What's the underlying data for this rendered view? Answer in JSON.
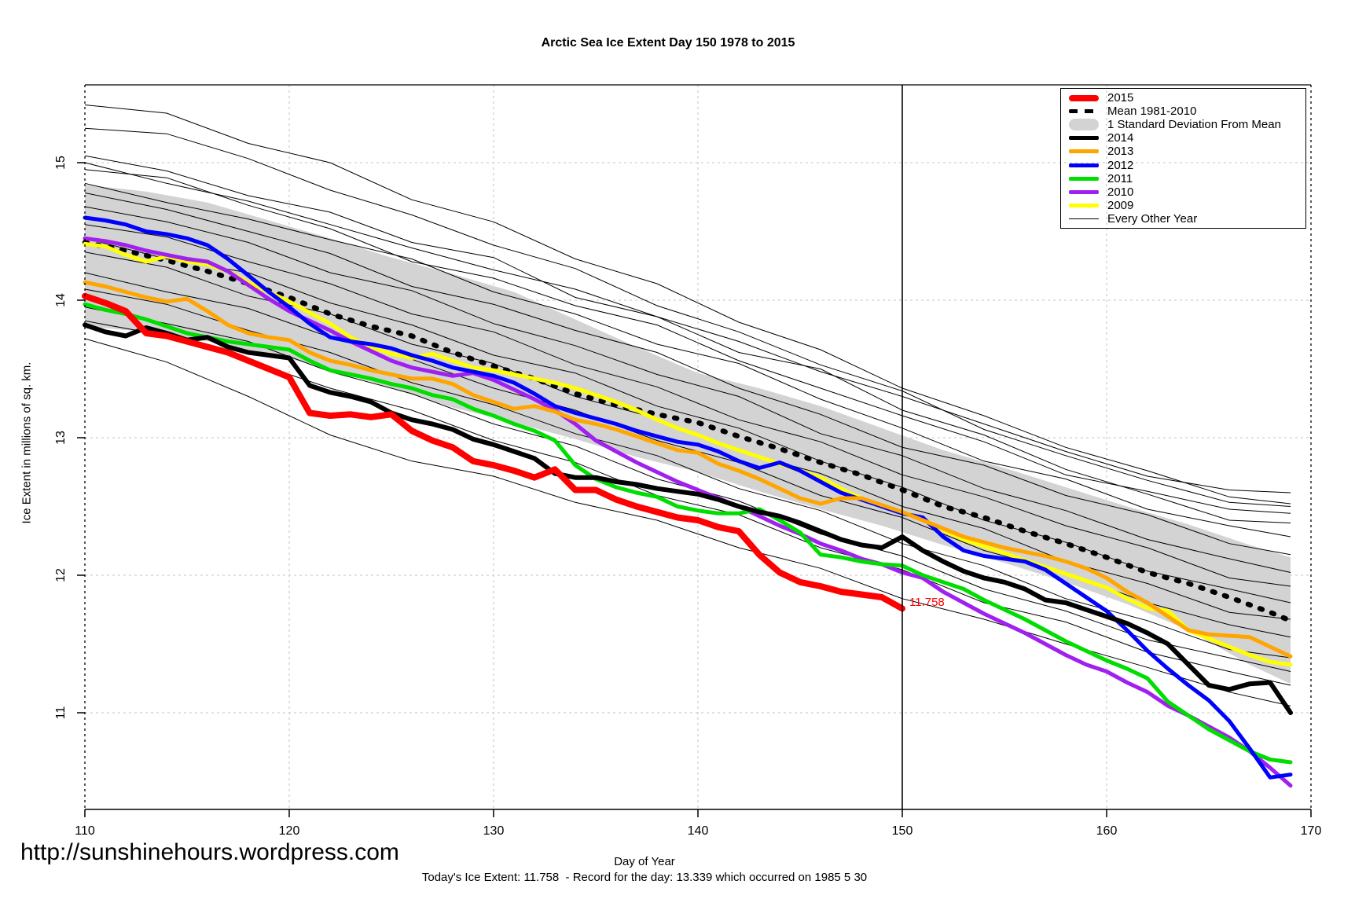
{
  "chart_data": {
    "type": "line",
    "title": "Arctic Sea Ice Extent Day 150 1978 to 2015",
    "xlabel": "Day of Year",
    "ylabel": "Ice Extent in millions of sq. km.",
    "x_ticks": [
      110,
      120,
      130,
      140,
      150,
      160,
      170
    ],
    "y_ticks": [
      11,
      12,
      13,
      14,
      15
    ],
    "x_range": [
      110,
      170
    ],
    "y_range": [
      10.3,
      15.57
    ],
    "grid": "dashed-lightgray",
    "marker": {
      "x": 150,
      "label": "11.758",
      "value": 11.758,
      "color": "#ff0000"
    },
    "band": {
      "name": "1 Standard Deviation From Mean",
      "color": "#d3d3d3",
      "days": [
        110,
        113,
        116,
        119,
        122,
        125,
        128,
        131,
        134,
        137,
        140,
        143,
        146,
        149,
        152,
        155,
        158,
        161,
        164,
        167,
        169
      ],
      "top": [
        14.84,
        14.79,
        14.71,
        14.58,
        14.45,
        14.31,
        14.19,
        14.06,
        13.86,
        13.66,
        13.47,
        13.36,
        13.23,
        13.07,
        12.91,
        12.78,
        12.64,
        12.5,
        12.37,
        12.22,
        12.13
      ],
      "bottom": [
        13.81,
        13.77,
        13.7,
        13.61,
        13.5,
        13.36,
        13.22,
        13.11,
        12.99,
        12.86,
        12.75,
        12.61,
        12.48,
        12.36,
        12.22,
        12.09,
        11.95,
        11.79,
        11.6,
        11.35,
        11.21
      ]
    },
    "mean": {
      "name": "Mean 1981-2010",
      "color": "#000000",
      "points": [
        [
          110,
          14.42
        ],
        [
          112,
          14.36
        ],
        [
          114,
          14.29
        ],
        [
          116,
          14.21
        ],
        [
          118,
          14.12
        ],
        [
          120,
          14.02
        ],
        [
          122,
          13.9
        ],
        [
          124,
          13.81
        ],
        [
          126,
          13.74
        ],
        [
          128,
          13.62
        ],
        [
          130,
          13.52
        ],
        [
          132,
          13.43
        ],
        [
          134,
          13.32
        ],
        [
          136,
          13.24
        ],
        [
          138,
          13.17
        ],
        [
          140,
          13.11
        ],
        [
          142,
          13.01
        ],
        [
          144,
          12.92
        ],
        [
          146,
          12.82
        ],
        [
          148,
          12.73
        ],
        [
          150,
          12.62
        ],
        [
          152,
          12.5
        ],
        [
          154,
          12.42
        ],
        [
          156,
          12.32
        ],
        [
          158,
          12.23
        ],
        [
          160,
          12.13
        ],
        [
          162,
          12.02
        ],
        [
          164,
          11.94
        ],
        [
          166,
          11.84
        ],
        [
          168,
          11.73
        ],
        [
          169,
          11.67
        ]
      ]
    },
    "series": [
      {
        "name": "2009",
        "color": "#ffff00",
        "width": 5,
        "start_day": 110,
        "values": [
          14.41,
          14.39,
          14.33,
          14.28,
          14.32,
          14.28,
          14.26,
          14.21,
          14.13,
          14.06,
          13.99,
          13.91,
          13.83,
          13.73,
          13.66,
          13.61,
          13.58,
          13.61,
          13.56,
          13.51,
          13.49,
          13.46,
          13.43,
          13.4,
          13.36,
          13.31,
          13.26,
          13.2,
          13.13,
          13.07,
          13.02,
          12.96,
          12.91,
          12.86,
          12.81,
          12.76,
          12.71,
          12.63,
          12.56,
          12.5,
          12.46,
          12.41,
          12.33,
          12.26,
          12.21,
          12.16,
          12.11,
          12.06,
          12.01,
          11.96,
          11.91,
          11.83,
          11.76,
          11.74,
          11.6,
          11.54,
          11.48,
          11.42,
          11.37,
          11.35
        ]
      },
      {
        "name": "2010",
        "color": "#a020f0",
        "width": 5,
        "start_day": 110,
        "values": [
          14.45,
          14.43,
          14.4,
          14.36,
          14.33,
          14.3,
          14.28,
          14.21,
          14.11,
          14.01,
          13.92,
          13.85,
          13.78,
          13.7,
          13.63,
          13.56,
          13.51,
          13.48,
          13.45,
          13.47,
          13.42,
          13.35,
          13.28,
          13.2,
          13.1,
          12.98,
          12.9,
          12.82,
          12.75,
          12.68,
          12.62,
          12.56,
          12.5,
          12.43,
          12.36,
          12.3,
          12.23,
          12.18,
          12.12,
          12.08,
          12.02,
          11.98,
          11.88,
          11.8,
          11.72,
          11.65,
          11.58,
          11.5,
          11.42,
          11.35,
          11.3,
          11.22,
          11.15,
          11.05,
          10.98,
          10.9,
          10.82,
          10.72,
          10.6,
          10.47
        ]
      },
      {
        "name": "2011",
        "color": "#00dd00",
        "width": 5,
        "start_day": 110,
        "values": [
          13.97,
          13.93,
          13.9,
          13.86,
          13.81,
          13.76,
          13.73,
          13.7,
          13.68,
          13.66,
          13.64,
          13.56,
          13.49,
          13.46,
          13.43,
          13.39,
          13.36,
          13.31,
          13.28,
          13.21,
          13.16,
          13.1,
          13.05,
          12.98,
          12.8,
          12.7,
          12.64,
          12.6,
          12.57,
          12.5,
          12.47,
          12.45,
          12.45,
          12.48,
          12.4,
          12.31,
          12.15,
          12.13,
          12.1,
          12.08,
          12.07,
          12.0,
          11.95,
          11.9,
          11.82,
          11.75,
          11.68,
          11.6,
          11.52,
          11.45,
          11.38,
          11.32,
          11.25,
          11.08,
          10.98,
          10.88,
          10.8,
          10.72,
          10.66,
          10.64
        ]
      },
      {
        "name": "2012",
        "color": "#0000ff",
        "width": 5,
        "start_day": 110,
        "values": [
          14.6,
          14.58,
          14.55,
          14.5,
          14.48,
          14.45,
          14.4,
          14.3,
          14.18,
          14.06,
          13.95,
          13.83,
          13.73,
          13.7,
          13.68,
          13.65,
          13.6,
          13.56,
          13.51,
          13.48,
          13.45,
          13.4,
          13.32,
          13.23,
          13.18,
          13.14,
          13.1,
          13.05,
          13.01,
          12.97,
          12.95,
          12.9,
          12.83,
          12.78,
          12.82,
          12.76,
          12.68,
          12.6,
          12.55,
          12.5,
          12.45,
          12.42,
          12.28,
          12.18,
          12.14,
          12.12,
          12.1,
          12.04,
          11.94,
          11.84,
          11.74,
          11.6,
          11.45,
          11.32,
          11.2,
          11.09,
          10.94,
          10.74,
          10.53,
          10.55
        ]
      },
      {
        "name": "2013",
        "color": "#ffa500",
        "width": 5,
        "start_day": 110,
        "values": [
          14.13,
          14.1,
          14.06,
          14.02,
          13.99,
          14.01,
          13.92,
          13.82,
          13.76,
          13.73,
          13.71,
          13.62,
          13.56,
          13.53,
          13.49,
          13.46,
          13.43,
          13.43,
          13.39,
          13.31,
          13.26,
          13.21,
          13.23,
          13.19,
          13.13,
          13.1,
          13.06,
          13.01,
          12.96,
          12.91,
          12.89,
          12.81,
          12.76,
          12.7,
          12.63,
          12.56,
          12.52,
          12.56,
          12.56,
          12.51,
          12.46,
          12.4,
          12.34,
          12.28,
          12.24,
          12.2,
          12.17,
          12.14,
          12.1,
          12.05,
          11.98,
          11.88,
          11.8,
          11.7,
          11.6,
          11.57,
          11.56,
          11.55,
          11.48,
          11.41
        ]
      },
      {
        "name": "2014",
        "color": "#000000",
        "width": 6,
        "start_day": 110,
        "values": [
          13.82,
          13.77,
          13.74,
          13.8,
          13.76,
          13.71,
          13.73,
          13.66,
          13.62,
          13.6,
          13.58,
          13.38,
          13.33,
          13.3,
          13.26,
          13.18,
          13.13,
          13.1,
          13.06,
          12.99,
          12.95,
          12.9,
          12.85,
          12.74,
          12.71,
          12.71,
          12.68,
          12.66,
          12.63,
          12.61,
          12.59,
          12.55,
          12.5,
          12.46,
          12.43,
          12.38,
          12.32,
          12.26,
          12.22,
          12.2,
          12.28,
          12.18,
          12.1,
          12.03,
          11.98,
          11.95,
          11.9,
          11.82,
          11.8,
          11.75,
          11.7,
          11.65,
          11.58,
          11.5,
          11.35,
          11.2,
          11.17,
          11.21,
          11.22,
          11.0
        ]
      },
      {
        "name": "2015",
        "color": "#ff0000",
        "width": 8,
        "start_day": 110,
        "values": [
          14.03,
          13.98,
          13.92,
          13.76,
          13.74,
          13.7,
          13.66,
          13.62,
          13.56,
          13.5,
          13.44,
          13.18,
          13.16,
          13.17,
          13.15,
          13.17,
          13.05,
          12.98,
          12.93,
          12.83,
          12.8,
          12.76,
          12.71,
          12.77,
          12.62,
          12.62,
          12.55,
          12.5,
          12.46,
          12.42,
          12.4,
          12.35,
          12.32,
          12.15,
          12.02,
          11.95,
          11.92,
          11.88,
          11.86,
          11.84,
          11.758
        ]
      }
    ],
    "background": {
      "name": "Every Other Year",
      "color": "#000000",
      "days": [
        110,
        114,
        118,
        122,
        126,
        130,
        134,
        138,
        142,
        146,
        150,
        154,
        158,
        162,
        166,
        169
      ],
      "lines": [
        [
          15.42,
          15.36,
          15.14,
          15.0,
          14.73,
          14.57,
          14.3,
          14.12,
          13.84,
          13.64,
          13.36,
          13.16,
          12.93,
          12.76,
          12.57,
          12.52
        ],
        [
          15.25,
          15.21,
          15.03,
          14.8,
          14.62,
          14.4,
          14.23,
          13.96,
          13.77,
          13.53,
          13.34,
          13.06,
          12.87,
          12.69,
          12.53,
          12.5
        ],
        [
          15.05,
          14.94,
          14.76,
          14.64,
          14.42,
          14.31,
          14.02,
          13.88,
          13.62,
          13.5,
          13.2,
          13.02,
          12.77,
          12.59,
          12.4,
          12.38
        ],
        [
          15.0,
          14.85,
          14.72,
          14.55,
          14.38,
          14.22,
          14.08,
          13.88,
          13.7,
          13.48,
          13.3,
          13.1,
          12.9,
          12.72,
          12.62,
          12.6
        ],
        [
          14.95,
          14.89,
          14.69,
          14.52,
          14.28,
          14.16,
          13.96,
          13.82,
          13.56,
          13.36,
          13.16,
          12.97,
          12.73,
          12.61,
          12.48,
          12.45
        ],
        [
          14.85,
          14.71,
          14.59,
          14.44,
          14.3,
          14.06,
          13.9,
          13.68,
          13.54,
          13.28,
          13.07,
          12.83,
          12.7,
          12.48,
          12.36,
          12.28
        ],
        [
          14.78,
          14.66,
          14.5,
          14.34,
          14.1,
          13.97,
          13.78,
          13.62,
          13.36,
          13.17,
          12.93,
          12.8,
          12.58,
          12.44,
          12.23,
          12.15
        ],
        [
          14.68,
          14.57,
          14.42,
          14.2,
          14.07,
          13.83,
          13.67,
          13.46,
          13.3,
          13.03,
          12.87,
          12.63,
          12.47,
          12.26,
          12.12,
          12.02
        ],
        [
          14.55,
          14.46,
          14.28,
          14.12,
          13.9,
          13.77,
          13.53,
          13.37,
          13.13,
          12.97,
          12.73,
          12.57,
          12.36,
          12.2,
          11.98,
          11.92
        ],
        [
          14.45,
          14.3,
          14.2,
          13.98,
          13.82,
          13.6,
          13.47,
          13.23,
          13.07,
          12.83,
          12.64,
          12.4,
          12.24,
          12.03,
          11.9,
          11.8
        ],
        [
          14.35,
          14.24,
          14.03,
          13.9,
          13.68,
          13.54,
          13.3,
          13.14,
          12.9,
          12.74,
          12.5,
          12.34,
          12.1,
          11.94,
          11.73,
          11.68
        ],
        [
          14.2,
          14.06,
          13.94,
          13.73,
          13.57,
          13.36,
          13.2,
          12.98,
          12.82,
          12.58,
          12.42,
          12.18,
          12.02,
          11.8,
          11.64,
          11.55
        ],
        [
          14.08,
          13.97,
          13.78,
          13.62,
          13.4,
          13.24,
          13.03,
          12.87,
          12.63,
          12.47,
          12.23,
          12.07,
          11.83,
          11.67,
          11.46,
          11.4
        ],
        [
          13.95,
          13.83,
          13.7,
          13.48,
          13.32,
          13.1,
          12.94,
          12.7,
          12.54,
          12.3,
          12.14,
          11.9,
          11.74,
          11.53,
          11.4,
          11.3
        ],
        [
          13.85,
          13.74,
          13.56,
          13.36,
          13.2,
          12.98,
          12.82,
          12.58,
          12.44,
          12.2,
          12.04,
          11.8,
          11.66,
          11.44,
          11.3,
          11.2
        ],
        [
          13.72,
          13.55,
          13.3,
          13.02,
          12.83,
          12.72,
          12.53,
          12.4,
          12.2,
          12.05,
          11.83,
          11.68,
          11.5,
          11.33,
          11.15,
          11.05
        ]
      ]
    }
  },
  "legend": {
    "items": [
      {
        "label": "2015",
        "swatch": "thick-line",
        "color": "#ff0000"
      },
      {
        "label": "Mean 1981-2010",
        "swatch": "dashed-line",
        "color": "#000000"
      },
      {
        "label": "1 Standard Deviation From Mean",
        "swatch": "band",
        "color": "#d3d3d3"
      },
      {
        "label": "2014",
        "swatch": "line",
        "color": "#000000"
      },
      {
        "label": "2013",
        "swatch": "line",
        "color": "#ffa500"
      },
      {
        "label": "2012",
        "swatch": "line",
        "color": "#0000ff"
      },
      {
        "label": "2011",
        "swatch": "line",
        "color": "#00dd00"
      },
      {
        "label": "2010",
        "swatch": "line",
        "color": "#a020f0"
      },
      {
        "label": "2009",
        "swatch": "line",
        "color": "#ffff00"
      },
      {
        "label": "Every Other Year",
        "swatch": "thin-line",
        "color": "#000000"
      }
    ]
  },
  "footer": {
    "url": "http://sunshinehours.wordpress.com",
    "note": "Today's Ice Extent: 11.758  - Record for the day: 13.339 which occurred on 1985 5 30"
  },
  "colors": {
    "grid": "#cfcfcf",
    "edge_line": "#000000",
    "annotation": "#ff0000"
  }
}
